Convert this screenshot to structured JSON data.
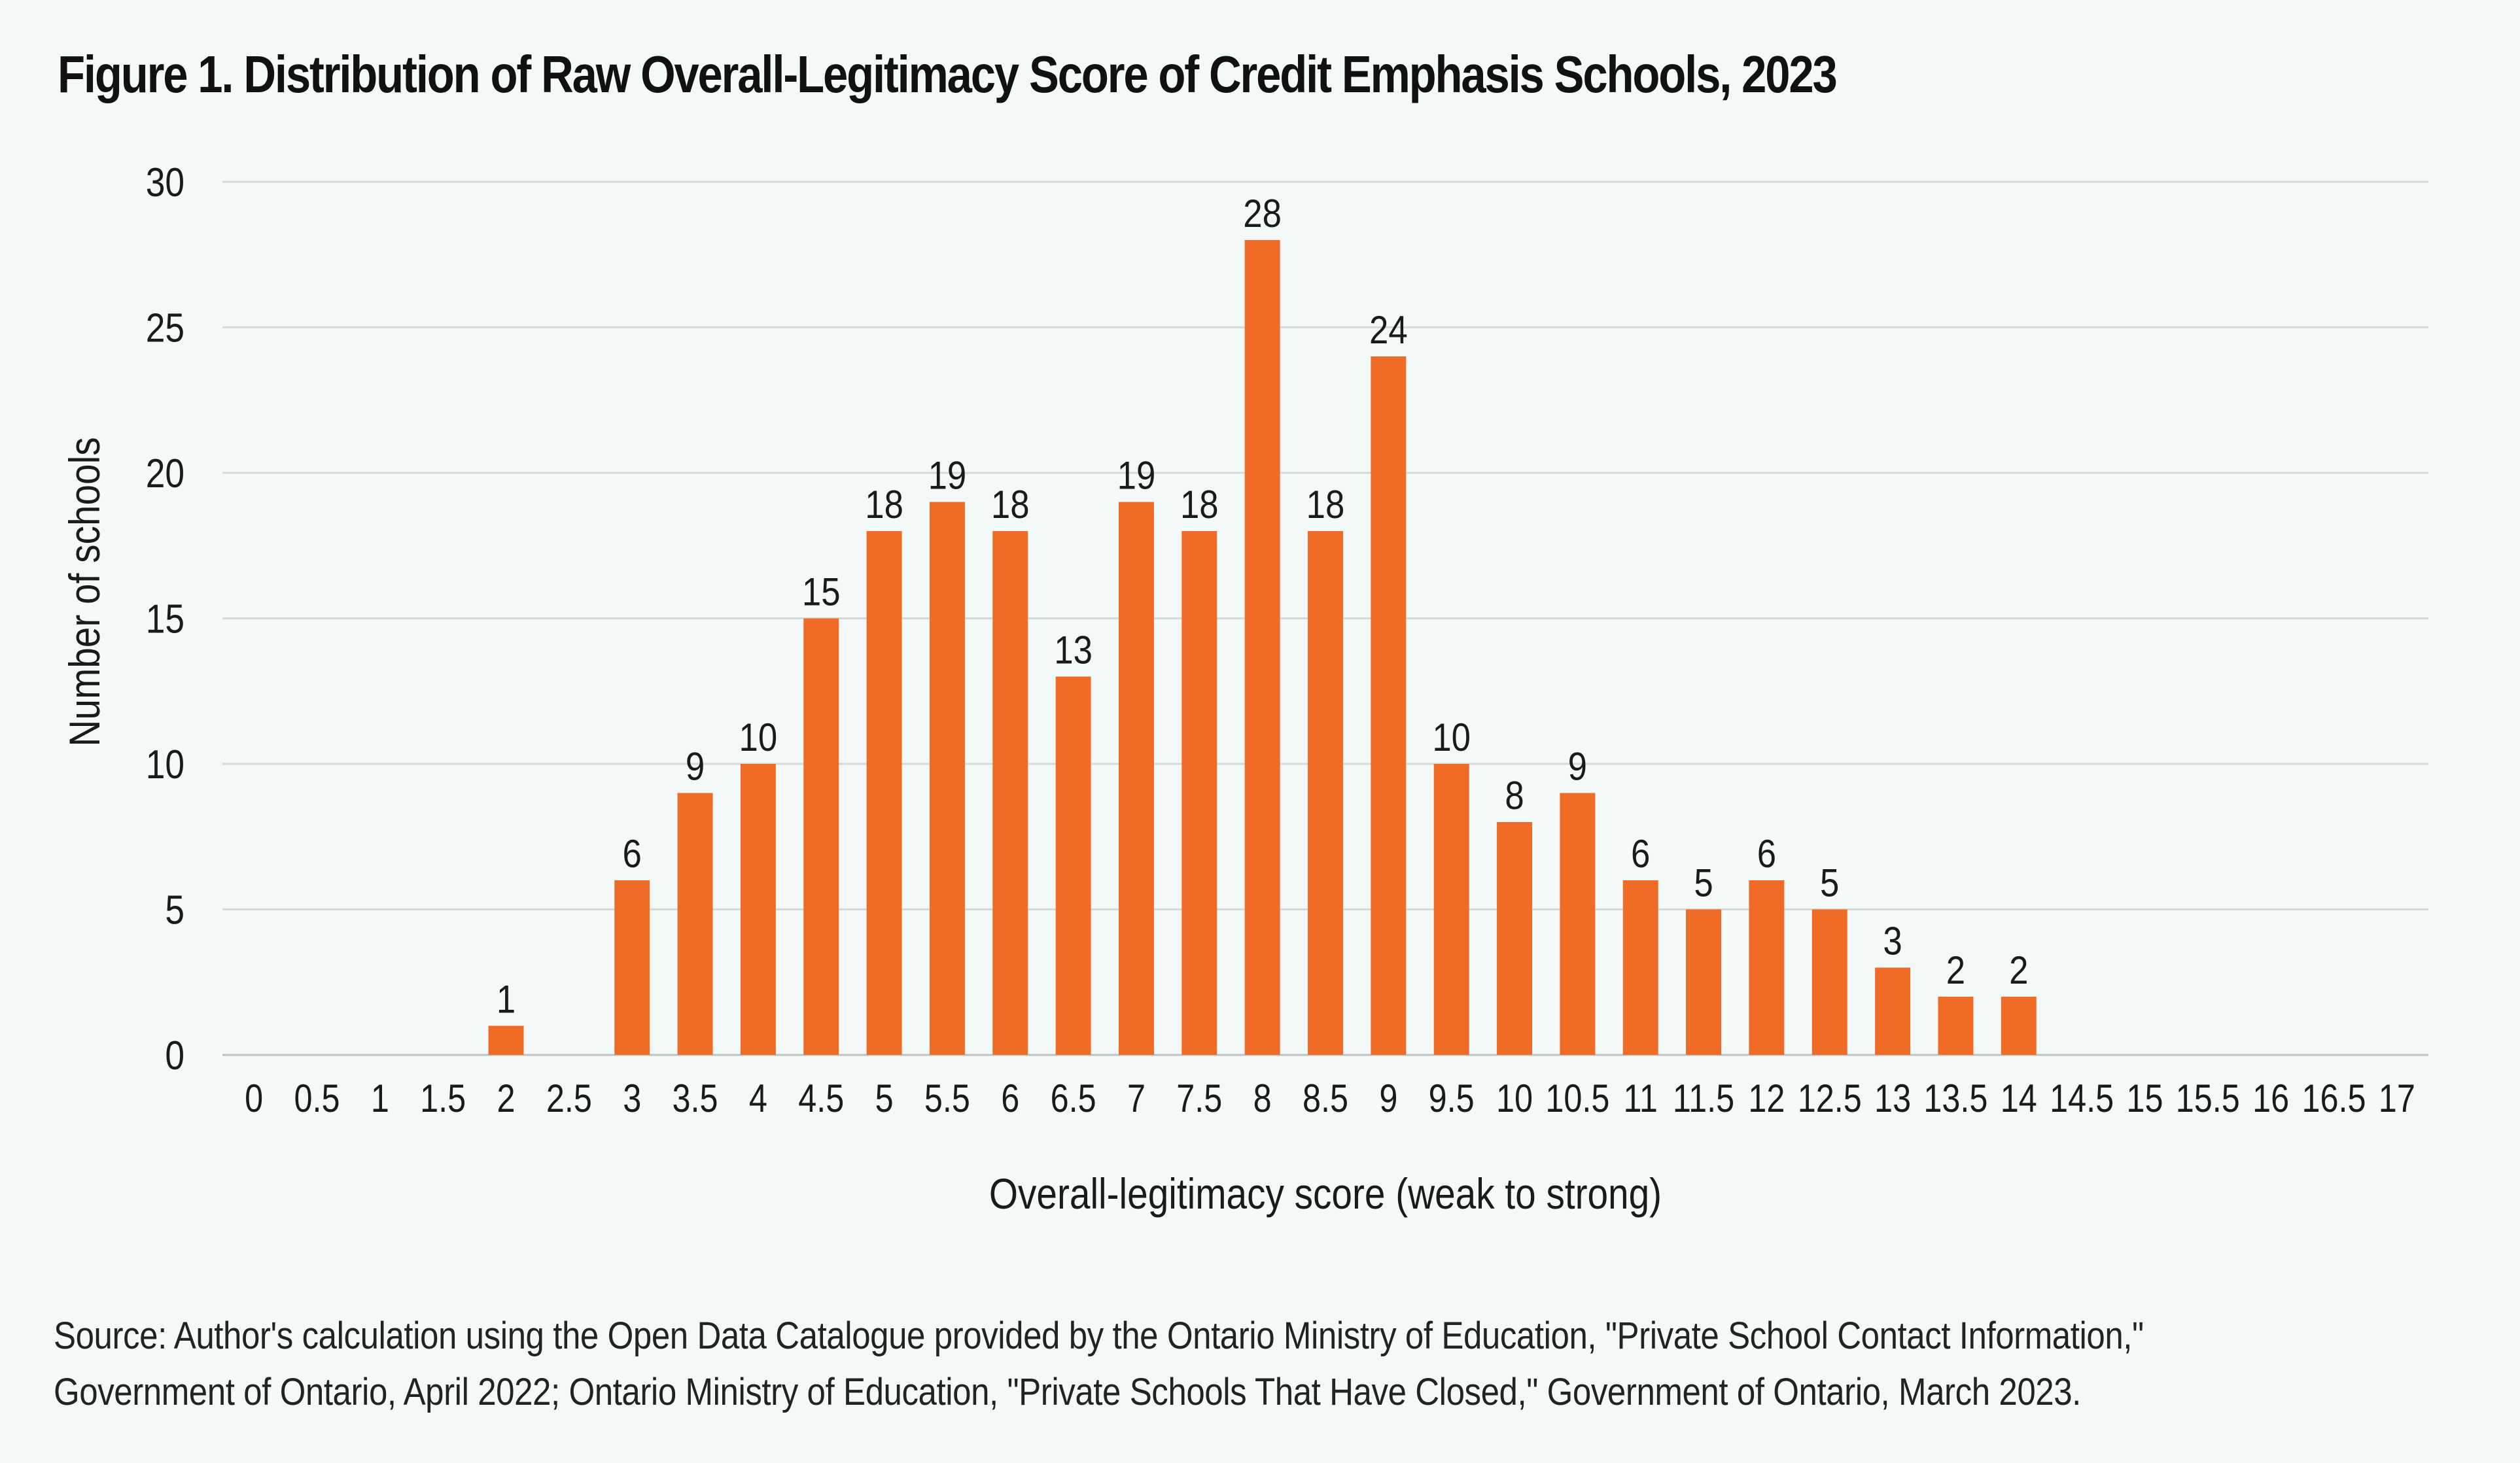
{
  "chart_data": {
    "type": "bar",
    "title": "Figure 1. Distribution of Raw Overall-Legitimacy Score of Credit Emphasis Schools, 2023",
    "xlabel": "Overall-legitimacy score (weak to strong)",
    "ylabel": "Number of schools",
    "ylim": [
      0,
      30
    ],
    "yticks": [
      "0",
      "5",
      "10",
      "15",
      "20",
      "25",
      "30"
    ],
    "categories": [
      "0",
      "0.5",
      "1",
      "1.5",
      "2",
      "2.5",
      "3",
      "3.5",
      "4",
      "4.5",
      "5",
      "5.5",
      "6",
      "6.5",
      "7",
      "7.5",
      "8",
      "8.5",
      "9",
      "9.5",
      "10",
      "10.5",
      "11",
      "11.5",
      "12",
      "12.5",
      "13",
      "13.5",
      "14",
      "14.5",
      "15",
      "15.5",
      "16",
      "16.5",
      "17"
    ],
    "values": [
      0,
      0,
      0,
      0,
      1,
      0,
      6,
      9,
      10,
      15,
      18,
      19,
      18,
      13,
      19,
      18,
      28,
      18,
      24,
      10,
      8,
      9,
      6,
      5,
      6,
      5,
      3,
      2,
      2,
      0,
      0,
      0,
      0,
      0,
      0
    ],
    "grid": true,
    "bar_color": "#f06b26"
  },
  "source": {
    "line1": "Source: Author's calculation using the Open Data Catalogue provided by the Ontario Ministry of Education, \"Private School Contact Information,\"",
    "line2": "Government of Ontario, April 2022; Ontario Ministry of Education, \"Private Schools That Have Closed,\" Government of Ontario, March 2023."
  }
}
